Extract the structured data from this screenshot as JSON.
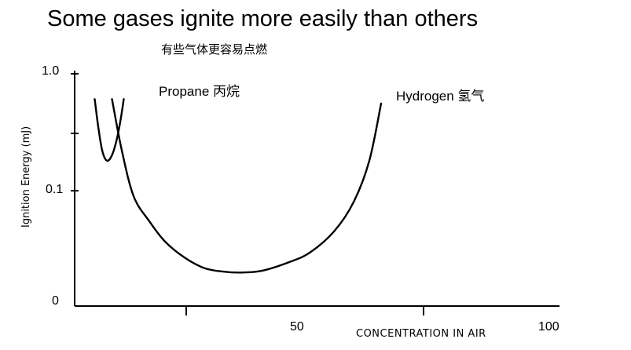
{
  "chart_data": {
    "type": "line",
    "title": "Some gases ignite more easily than others",
    "subtitle": "有些气体更容易点燃",
    "ylabel": "Ignition Energy (mJ)",
    "xlabel": "CONCENTRATION IN AIR",
    "y_scale": "log",
    "y_ticks": [
      "1.0",
      "0.1",
      "0"
    ],
    "x_ticks": [
      "50",
      "100"
    ],
    "series": [
      {
        "name": "Propane 丙烷",
        "x": [
          2.1,
          3.0,
          4.0,
          5.2,
          6.5,
          7.8,
          8.8,
          9.5
        ],
        "y": [
          0.6,
          0.35,
          0.22,
          0.18,
          0.2,
          0.28,
          0.42,
          0.6
        ]
      },
      {
        "name": "Hydrogen 氢气",
        "x": [
          6.5,
          9,
          12,
          16,
          20,
          25,
          30,
          35,
          40,
          45,
          52,
          57,
          63,
          68,
          72,
          75
        ],
        "y": [
          0.6,
          0.22,
          0.09,
          0.055,
          0.037,
          0.027,
          0.022,
          0.0205,
          0.0202,
          0.021,
          0.025,
          0.03,
          0.045,
          0.08,
          0.18,
          0.55
        ]
      }
    ]
  }
}
